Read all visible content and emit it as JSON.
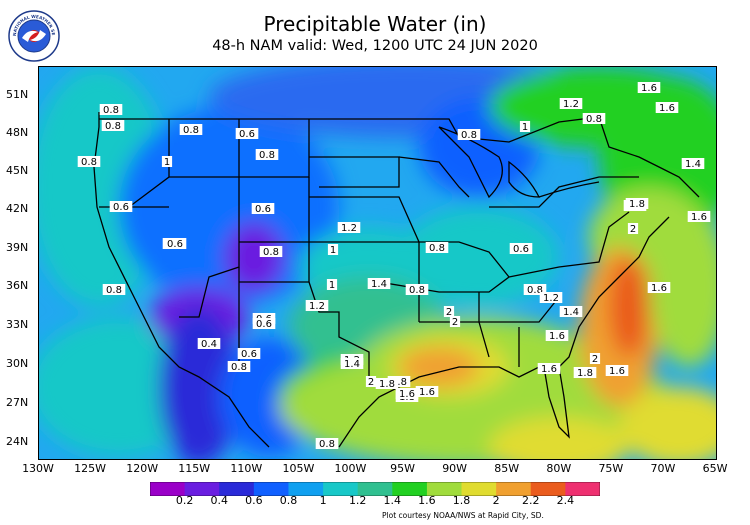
{
  "header": {
    "title": "Precipitable Water (in)",
    "subtitle": "48-h NAM valid: Wed, 1200 UTC 24 JUN 2020"
  },
  "logo": {
    "name": "noaa-nws-seal",
    "text": "NATIONAL WEATHER SERVICE"
  },
  "axes": {
    "lat_labels": [
      "51N",
      "48N",
      "45N",
      "42N",
      "39N",
      "36N",
      "33N",
      "30N",
      "27N",
      "24N"
    ],
    "lon_labels": [
      "130W",
      "125W",
      "120W",
      "115W",
      "110W",
      "105W",
      "100W",
      "95W",
      "90W",
      "85W",
      "80W",
      "75W",
      "70W",
      "65W"
    ]
  },
  "colorbar": {
    "labels": [
      "0.2",
      "0.4",
      "0.6",
      "0.8",
      "1",
      "1.2",
      "1.4",
      "1.6",
      "1.8",
      "2",
      "2.2",
      "2.4"
    ],
    "colors": [
      "#9a00c8",
      "#6a1ee0",
      "#2a2ad8",
      "#1060ff",
      "#10a0f0",
      "#18c8c8",
      "#30c090",
      "#22d022",
      "#a0dc3c",
      "#e0dc30",
      "#f0a030",
      "#ea5c1e",
      "#ee3070"
    ]
  },
  "contour_labels": [
    "0.8",
    "0.8",
    "0.8",
    "0.6",
    "0.8",
    "0.8",
    "1",
    "0.6",
    "0.6",
    "0.4",
    "0.8",
    "0.6",
    "1.2",
    "1",
    "0.8",
    "1.4",
    "0.8",
    "0.8",
    "0.6",
    "1.6",
    "1.2",
    "0.8",
    "1",
    "1.6",
    "1.4",
    "1.2",
    "0.4",
    "0.6",
    "0.6",
    "0.8",
    "1.2",
    "1.4",
    "2",
    "1.8",
    "2",
    "0.8",
    "1.2",
    "1.4",
    "1.6",
    "1.6",
    "1.8",
    "1.6",
    "2",
    "1.8",
    "2",
    "1.8",
    "1.6",
    "1.6",
    "1.8",
    "2",
    "1.6",
    "1.6",
    "0.8",
    "0.8",
    "0.6",
    "1.2",
    "1"
  ],
  "credit": "Plot courtesy NOAA/NWS at Rapid City, SD."
}
